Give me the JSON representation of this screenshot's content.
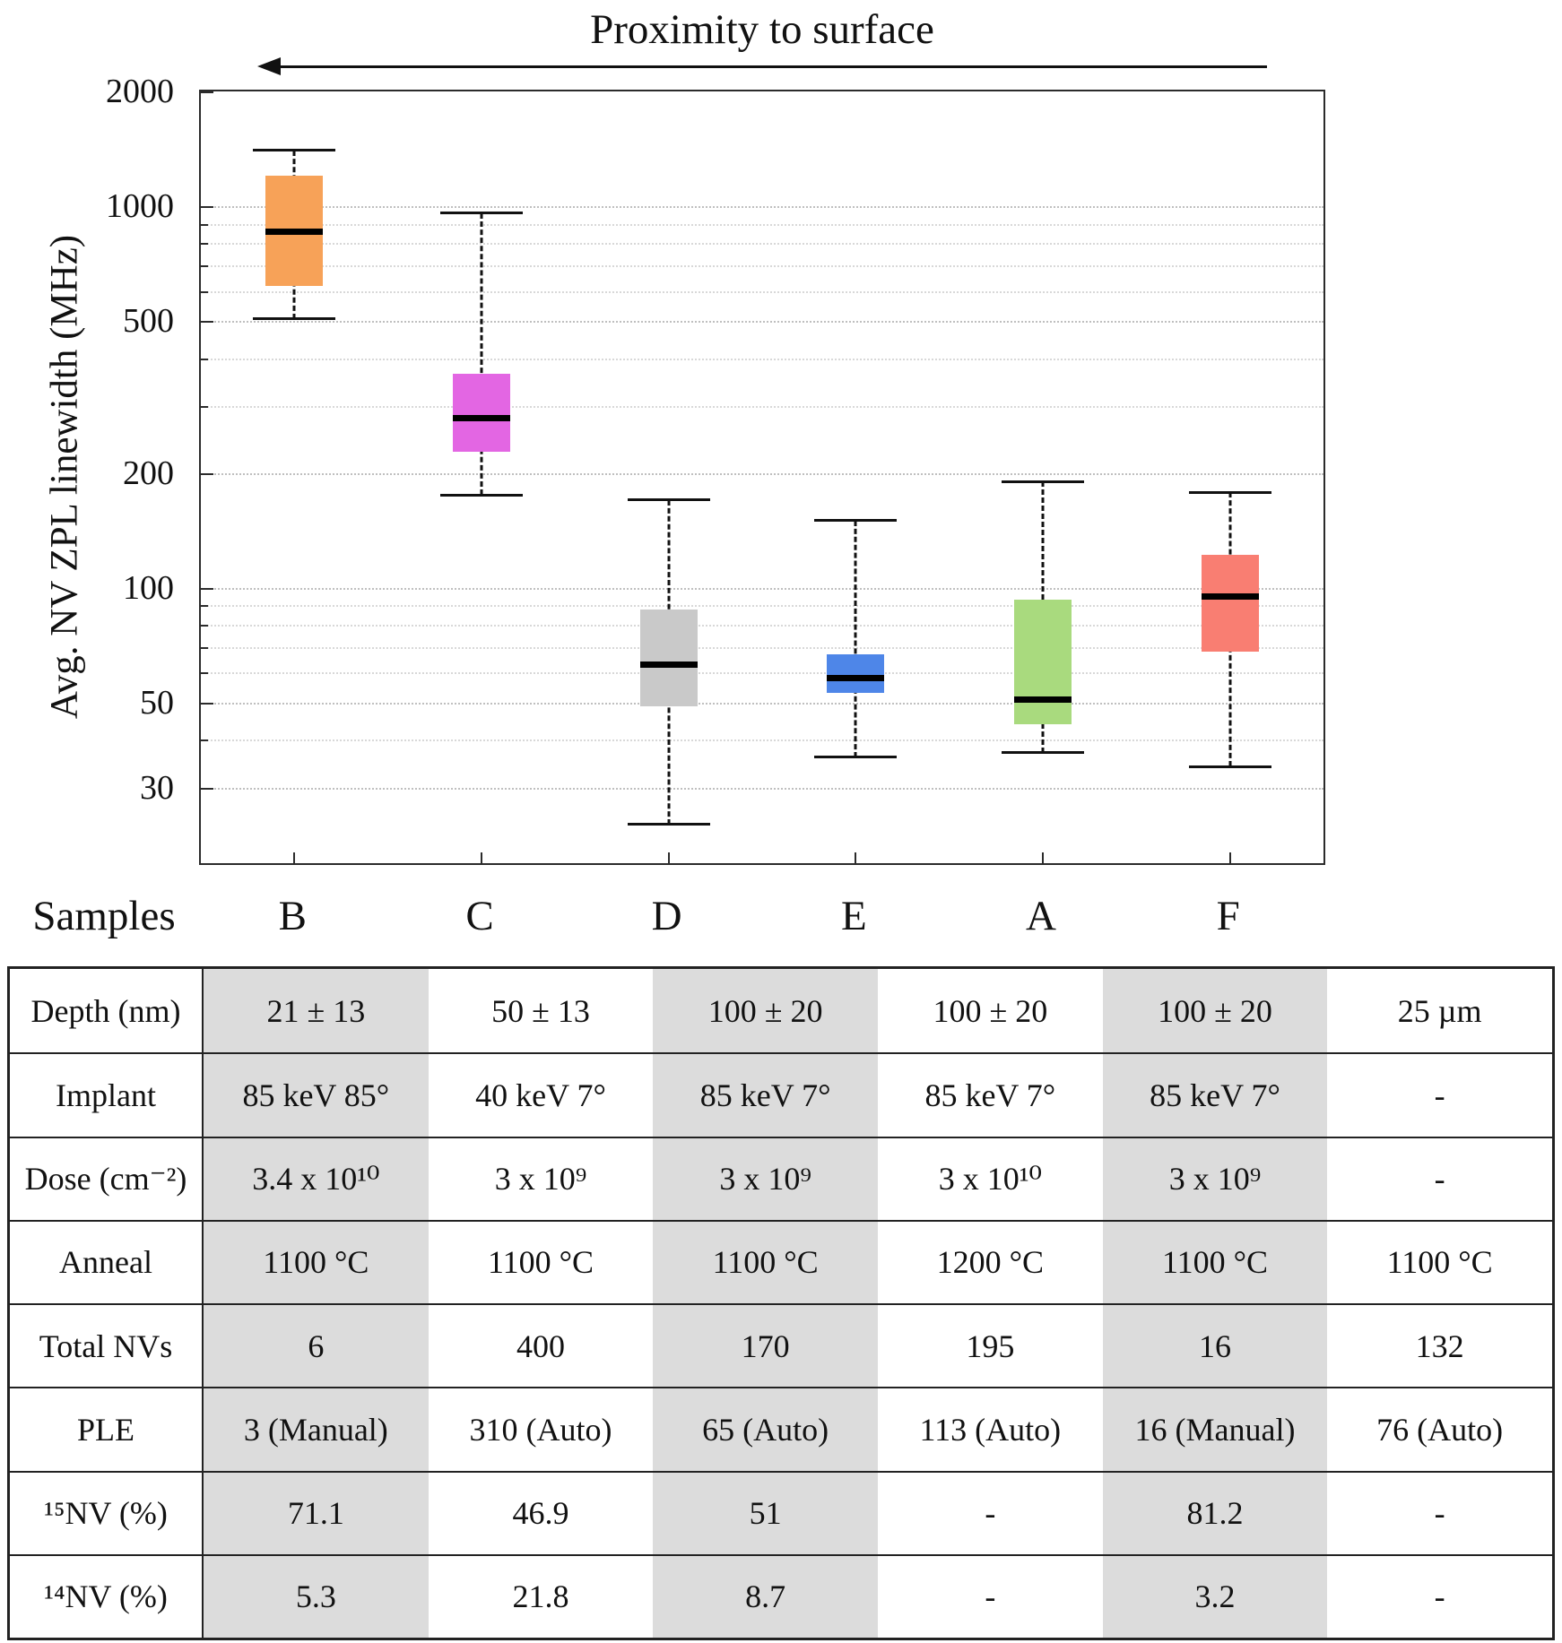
{
  "samples_label": "Samples",
  "chart_data": {
    "type": "box",
    "title": "Proximity to surface",
    "ylabel": "Avg. NV ZPL linewidth (MHz)",
    "xlabel": "Samples",
    "yscale": "log",
    "ylim": [
      19,
      2000
    ],
    "yticks": [
      30,
      50,
      100,
      200,
      500,
      1000,
      2000
    ],
    "minor_gridlines": [
      40,
      60,
      70,
      80,
      90,
      300,
      400,
      600,
      700,
      800,
      900
    ],
    "grid": "on",
    "categories": [
      "B",
      "C",
      "D",
      "E",
      "A",
      "F"
    ],
    "series": [
      {
        "category": "B",
        "whisker_low": 507,
        "q1": 620,
        "median": 860,
        "q3": 1200,
        "whisker_high": 1400,
        "color": "#F7A258"
      },
      {
        "category": "C",
        "whisker_low": 175,
        "q1": 228,
        "median": 278,
        "q3": 365,
        "whisker_high": 960,
        "color": "#E366E3"
      },
      {
        "category": "D",
        "whisker_low": 24,
        "q1": 49,
        "median": 63,
        "q3": 88,
        "whisker_high": 170,
        "color": "#C9C9C9"
      },
      {
        "category": "E",
        "whisker_low": 36,
        "q1": 53,
        "median": 58,
        "q3": 67,
        "whisker_high": 150,
        "color": "#4E86E8"
      },
      {
        "category": "A",
        "whisker_low": 37,
        "q1": 44,
        "median": 51,
        "q3": 93,
        "whisker_high": 190,
        "color": "#A9DA7E"
      },
      {
        "category": "F",
        "whisker_low": 34,
        "q1": 68,
        "median": 95,
        "q3": 122,
        "whisker_high": 178,
        "color": "#F97E72"
      }
    ]
  },
  "table": {
    "row_labels": [
      "Depth (nm)",
      "Implant",
      "Dose (cm⁻²)",
      "Anneal",
      "Total NVs",
      "PLE",
      "¹⁵NV (%)",
      "¹⁴NV (%)"
    ],
    "columns": [
      "B",
      "C",
      "D",
      "E",
      "A",
      "F"
    ],
    "shaded_columns": [
      0,
      2,
      4
    ],
    "shade_color": "#DCDCDC",
    "rows": [
      [
        "21 ± 13",
        "50 ± 13",
        "100 ± 20",
        "100 ± 20",
        "100 ± 20",
        "25 µm"
      ],
      [
        "85 keV 85°",
        "40 keV 7°",
        "85 keV 7°",
        "85 keV 7°",
        "85 keV 7°",
        "-"
      ],
      [
        "3.4 x 10¹⁰",
        "3 x 10⁹",
        "3 x 10⁹",
        "3 x 10¹⁰",
        "3 x 10⁹",
        "-"
      ],
      [
        "1100 °C",
        "1100 °C",
        "1100 °C",
        "1200 °C",
        "1100 °C",
        "1100 °C"
      ],
      [
        "6",
        "400",
        "170",
        "195",
        "16",
        "132"
      ],
      [
        "3 (Manual)",
        "310 (Auto)",
        "65 (Auto)",
        "113 (Auto)",
        "16 (Manual)",
        "76 (Auto)"
      ],
      [
        "71.1",
        "46.9",
        "51",
        "-",
        "81.2",
        "-"
      ],
      [
        "5.3",
        "21.8",
        "8.7",
        "-",
        "3.2",
        "-"
      ]
    ]
  }
}
